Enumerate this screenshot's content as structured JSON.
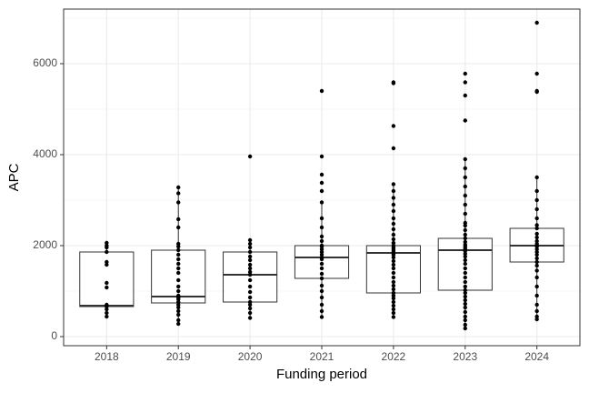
{
  "chart_data": {
    "type": "boxplot",
    "x_label": "Funding period",
    "y_label": "APC",
    "categories": [
      "2018",
      "2019",
      "2020",
      "2021",
      "2022",
      "2023",
      "2024"
    ],
    "boxes": [
      {
        "min": 440,
        "q1": 660,
        "median": 680,
        "q3": 1860,
        "max": 2060
      },
      {
        "min": 280,
        "q1": 740,
        "median": 880,
        "q3": 1900,
        "max": 3280
      },
      {
        "min": 410,
        "q1": 760,
        "median": 1360,
        "q3": 1860,
        "max": 2120
      },
      {
        "min": 430,
        "q1": 1280,
        "median": 1740,
        "q3": 2000,
        "max": 2950
      },
      {
        "min": 430,
        "q1": 960,
        "median": 1840,
        "q3": 2000,
        "max": 3350
      },
      {
        "min": 180,
        "q1": 1020,
        "median": 1900,
        "q3": 2160,
        "max": 3900
      },
      {
        "min": 380,
        "q1": 1640,
        "median": 2000,
        "q3": 2380,
        "max": 3500
      }
    ],
    "points": [
      [
        440,
        520,
        600,
        660,
        680,
        700,
        1080,
        1180,
        1580,
        1640,
        1860,
        1960,
        2000,
        2060
      ],
      [
        280,
        360,
        480,
        560,
        640,
        700,
        760,
        820,
        860,
        880,
        900,
        1000,
        1100,
        1240,
        1400,
        1500,
        1600,
        1700,
        1800,
        1900,
        1980,
        2040,
        2400,
        2580,
        2950,
        3150,
        3280
      ],
      [
        410,
        520,
        620,
        700,
        760,
        860,
        980,
        1100,
        1240,
        1360,
        1420,
        1500,
        1580,
        1680,
        1760,
        1860,
        1960,
        2040,
        2120,
        3960
      ],
      [
        430,
        560,
        700,
        860,
        1000,
        1120,
        1280,
        1380,
        1500,
        1600,
        1700,
        1740,
        1800,
        1860,
        1920,
        1980,
        2000,
        2100,
        2200,
        2400,
        2600,
        2950,
        3200,
        3380,
        3560,
        3960,
        5400
      ],
      [
        430,
        520,
        600,
        680,
        760,
        840,
        900,
        960,
        1040,
        1120,
        1200,
        1300,
        1400,
        1500,
        1580,
        1660,
        1740,
        1800,
        1840,
        1880,
        1920,
        1960,
        2000,
        2060,
        2140,
        2240,
        2360,
        2480,
        2600,
        2760,
        2900,
        3050,
        3200,
        3350,
        4140,
        4630,
        5570,
        5590
      ],
      [
        180,
        260,
        360,
        440,
        540,
        640,
        720,
        800,
        880,
        960,
        1020,
        1100,
        1200,
        1300,
        1400,
        1500,
        1600,
        1680,
        1760,
        1820,
        1880,
        1900,
        1940,
        1980,
        2020,
        2080,
        2160,
        2240,
        2340,
        2440,
        2500,
        2700,
        2900,
        3100,
        3300,
        3500,
        3700,
        3900,
        4750,
        5300,
        5590,
        5780
      ],
      [
        380,
        440,
        560,
        700,
        900,
        1100,
        1300,
        1450,
        1560,
        1640,
        1720,
        1800,
        1860,
        1920,
        1980,
        2000,
        2040,
        2100,
        2180,
        2260,
        2380,
        2450,
        2600,
        2800,
        3000,
        3200,
        3500,
        5380,
        5400,
        5780,
        6900
      ]
    ],
    "ylim": [
      -200,
      7200
    ],
    "yticks": [
      0,
      2000,
      4000,
      6000
    ],
    "grid": true
  }
}
